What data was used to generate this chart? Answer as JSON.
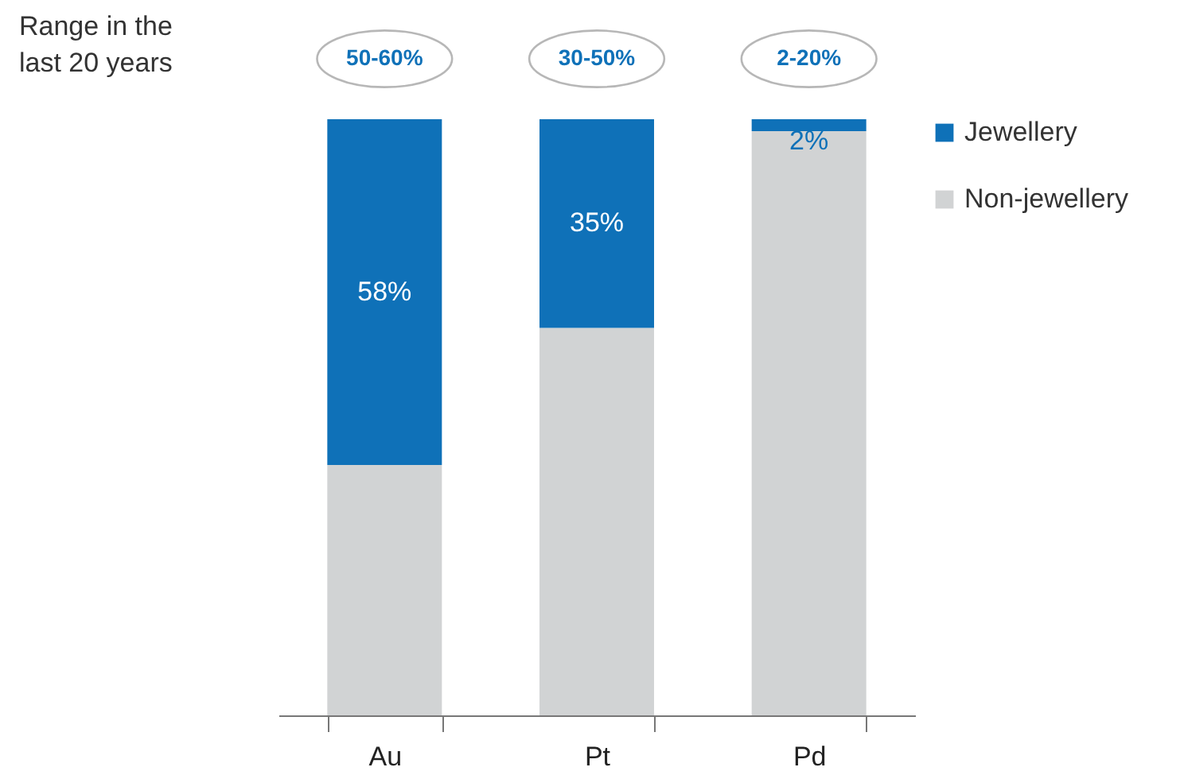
{
  "chart_data": {
    "type": "bar",
    "stacked": true,
    "categories": [
      "Au",
      "Pt",
      "Pd"
    ],
    "series": [
      {
        "name": "Non-jewellery",
        "color": "#d1d3d4",
        "values": [
          42,
          65,
          98
        ]
      },
      {
        "name": "Jewellery",
        "color": "#0f71b8",
        "values": [
          58,
          35,
          2
        ],
        "value_labels": [
          "58%",
          "35%",
          "2%"
        ]
      }
    ],
    "ylim": [
      0,
      100
    ],
    "tick_labels": "x",
    "legend": "right",
    "grid": false,
    "annotations": [
      "Range in the last 20 years",
      "50-60%",
      "30-50%",
      "2-20%"
    ]
  }
}
